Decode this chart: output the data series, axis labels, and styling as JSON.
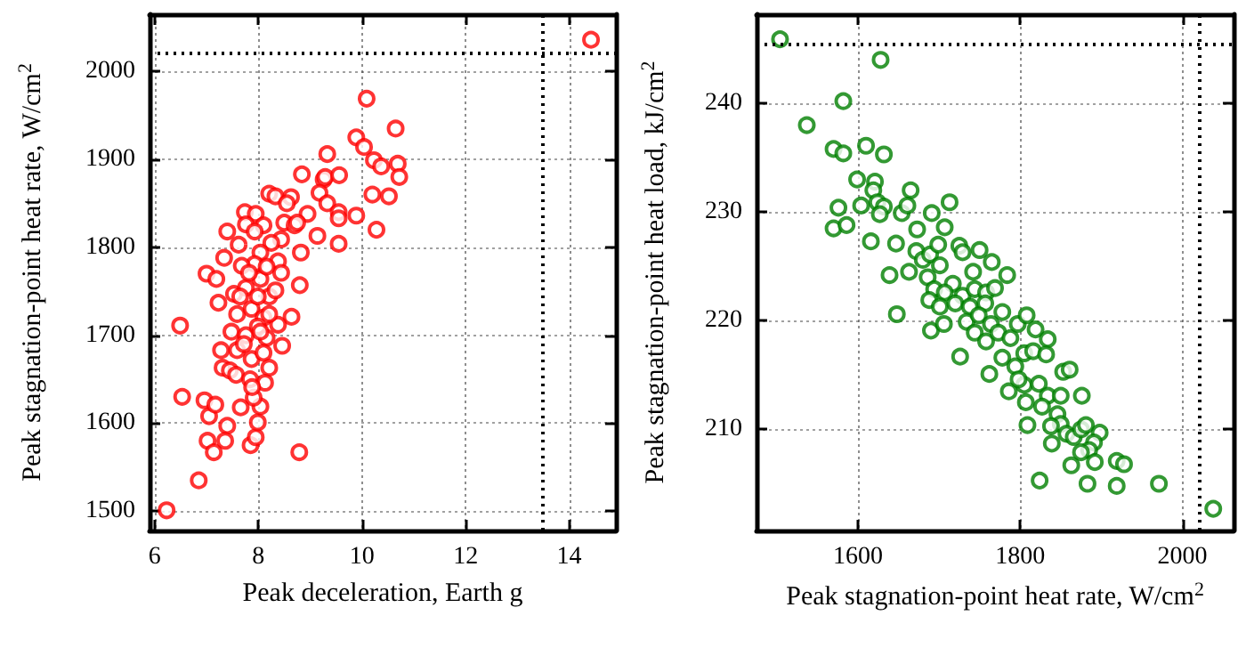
{
  "chart_data": [
    {
      "type": "scatter",
      "xlabel": "Peak deceleration, Earth g",
      "ylabel": "Peak stagnation-point heat rate, W/cm$^{2}$",
      "xlim": [
        5.9,
        14.9
      ],
      "xticks": [
        6,
        8,
        10,
        12,
        14
      ],
      "ylim": [
        1478,
        2065
      ],
      "yticks": [
        1500,
        1600,
        1700,
        1800,
        1900,
        2000
      ],
      "grid": true,
      "marker": "circle",
      "ref_lines": [
        {
          "axis": "x",
          "value": 13.5,
          "color": "#000000",
          "line_style": "dotted"
        },
        {
          "axis": "y",
          "value": 2020,
          "color": "#000000",
          "line_style": "dotted"
        }
      ],
      "series": [
        {
          "color": "#ff0000",
          "x": [
            14.42,
            10.09,
            10.65,
            9.89,
            10.04,
            9.33,
            10.23,
            10.37,
            10.69,
            10.72,
            8.84,
            9.26,
            9.29,
            9.56,
            9.18,
            10.2,
            10.52,
            8.21,
            8.33,
            8.63,
            8.55,
            9.33,
            8.95,
            9.55,
            9.55,
            9.89,
            10.28,
            9.14,
            9.55,
            8.82,
            8.8,
            8.64,
            8.46,
            8.79,
            6.49,
            6.53,
            6.85,
            6.23,
            6.96,
            7.05,
            7.17,
            7.02,
            7.14,
            7.4,
            7.36,
            7.66,
            7.85,
            7.95,
            7.99,
            8.04,
            7.91,
            7.28,
            7.31,
            7.23,
            7.0,
            7.19,
            7.34,
            7.4,
            7.62,
            7.74,
            7.95,
            7.76,
            8.1,
            8.5,
            8.7,
            8.75,
            8.44,
            8.25,
            8.04,
            7.93,
            7.68,
            8.38,
            8.44,
            7.53,
            7.76,
            8.04,
            8.21,
            8.33,
            7.59,
            7.87,
            8.1,
            8.38,
            7.48,
            7.76,
            7.99,
            8.16,
            7.59,
            7.87,
            8.1,
            8.21,
            7.45,
            7.57,
            7.84,
            8.13,
            7.88,
            7.72,
            7.99,
            7.82,
            8.16,
            8.21,
            7.65,
            8.04,
            7.93
          ],
          "values": [
            2036,
            1969,
            1935,
            1925,
            1914,
            1906,
            1899,
            1892,
            1895,
            1880,
            1883,
            1877,
            1880,
            1882,
            1862,
            1860,
            1858,
            1861,
            1858,
            1857,
            1850,
            1850,
            1838,
            1840,
            1833,
            1836,
            1820,
            1813,
            1804,
            1794,
            1757,
            1721,
            1688,
            1567,
            1711,
            1630,
            1535,
            1501,
            1626,
            1608,
            1621,
            1580,
            1567,
            1597,
            1580,
            1618,
            1575,
            1584,
            1601,
            1619,
            1629,
            1683,
            1663,
            1737,
            1770,
            1764,
            1788,
            1818,
            1803,
            1840,
            1838,
            1826,
            1825,
            1828,
            1825,
            1828,
            1809,
            1805,
            1794,
            1781,
            1779,
            1784,
            1771,
            1747,
            1754,
            1764,
            1744,
            1751,
            1724,
            1730,
            1720,
            1712,
            1704,
            1700,
            1710,
            1697,
            1683,
            1673,
            1680,
            1663,
            1660,
            1655,
            1650,
            1646,
            1641,
            1690,
            1744,
            1771,
            1778,
            1724,
            1744,
            1704,
            1818
          ]
        }
      ]
    },
    {
      "type": "scatter",
      "xlabel": "Peak stagnation-point heat rate, W/cm$^{2}$",
      "ylabel": "Peak stagnation-point heat load, kJ/cm$^{2}$",
      "xlim": [
        1475,
        2063
      ],
      "xticks": [
        1600,
        1800,
        2000
      ],
      "ylim": [
        200.7,
        248.2
      ],
      "yticks": [
        210,
        220,
        230,
        240
      ],
      "grid": true,
      "marker": "circle",
      "ref_lines": [
        {
          "axis": "x",
          "value": 2020,
          "color": "#000000",
          "line_style": "dotted"
        },
        {
          "axis": "y",
          "value": 245.5,
          "color": "#000000",
          "line_style": "dotted"
        }
      ],
      "series": [
        {
          "color": "#008000",
          "x": [
            1504,
            1628,
            1582,
            1537,
            1570,
            1582,
            1610,
            1632,
            1599,
            1621,
            1619,
            1665,
            1604,
            1624,
            1632,
            1576,
            1570,
            1586,
            1616,
            1627,
            1654,
            1661,
            1691,
            1713,
            1707,
            1647,
            1673,
            1639,
            1648,
            1663,
            1672,
            1680,
            1689,
            1699,
            1686,
            1701,
            1725,
            1729,
            1750,
            1765,
            1784,
            1742,
            1717,
            1694,
            1688,
            1707,
            1729,
            1744,
            1758,
            1769,
            1701,
            1720,
            1738,
            1757,
            1690,
            1706,
            1734,
            1749,
            1764,
            1778,
            1744,
            1758,
            1773,
            1788,
            1797,
            1808,
            1819,
            1834,
            1726,
            1762,
            1778,
            1794,
            1805,
            1816,
            1832,
            1853,
            1861,
            1786,
            1805,
            1798,
            1823,
            1834,
            1850,
            1876,
            1807,
            1809,
            1827,
            1846,
            1850,
            1838,
            1857,
            1866,
            1839,
            1875,
            1881,
            1898,
            1891,
            1885,
            1875,
            1892,
            1919,
            1928,
            1863,
            1824,
            1883,
            1919,
            1971,
            2038
          ],
          "values": [
            245.9,
            244.0,
            240.2,
            238.0,
            235.8,
            235.4,
            236.1,
            235.3,
            233.0,
            232.8,
            232.0,
            232.0,
            230.6,
            230.9,
            230.5,
            230.4,
            228.5,
            228.8,
            227.3,
            229.8,
            229.9,
            230.6,
            229.9,
            230.9,
            228.6,
            227.1,
            228.4,
            224.2,
            220.6,
            224.5,
            226.4,
            225.6,
            226.1,
            227.0,
            224.0,
            225.1,
            226.9,
            226.3,
            226.5,
            225.4,
            224.2,
            224.5,
            223.4,
            222.9,
            221.9,
            222.6,
            222.3,
            222.9,
            222.6,
            223.0,
            221.3,
            221.6,
            221.3,
            221.6,
            219.1,
            219.7,
            219.9,
            220.5,
            219.7,
            220.8,
            218.9,
            218.1,
            218.9,
            218.4,
            219.7,
            220.5,
            219.2,
            218.3,
            216.7,
            215.1,
            216.6,
            215.8,
            217.0,
            217.2,
            216.9,
            215.3,
            215.5,
            213.5,
            214.1,
            214.6,
            214.2,
            213.1,
            213.1,
            213.1,
            212.5,
            210.4,
            212.1,
            211.4,
            210.5,
            210.3,
            209.6,
            209.3,
            208.7,
            210.0,
            210.4,
            209.7,
            208.8,
            208.1,
            207.9,
            207.0,
            207.1,
            206.8,
            206.7,
            205.3,
            205.0,
            204.8,
            205.0,
            202.7
          ]
        }
      ]
    }
  ]
}
